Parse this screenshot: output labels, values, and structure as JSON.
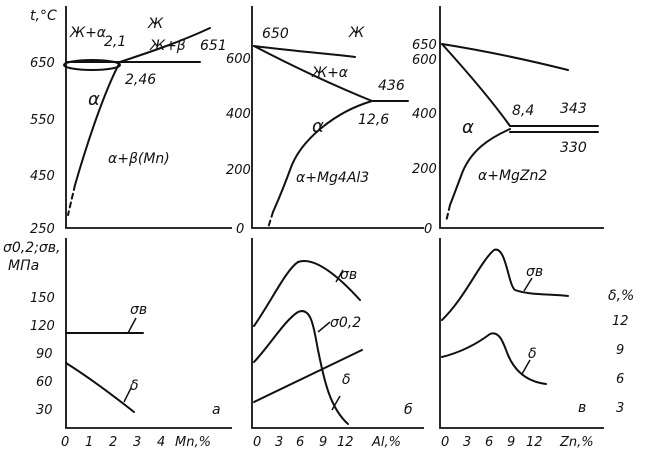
{
  "top_y_label": "t,°C",
  "bottom_y_label_1": "σ0,2;σв,",
  "bottom_y_label_2": "МПа",
  "right_y_label": "δ,%",
  "panel_a": {
    "top_y_ticks": [
      "650",
      "550",
      "450",
      "250"
    ],
    "phases": [
      "Ж+α",
      "Ж",
      "Ж+β",
      "α",
      "α+β(Mn)"
    ],
    "points": [
      "2,1",
      "651",
      "2,46"
    ],
    "bottom_y_ticks": [
      "150",
      "120",
      "90",
      "60",
      "30"
    ],
    "curve_labels": [
      "σв",
      "δ"
    ],
    "panel_letter": "а",
    "x_ticks": [
      "0",
      "1",
      "2",
      "3",
      "4"
    ],
    "x_label": "Mn,%"
  },
  "panel_b": {
    "top_y_ticks": [
      "600",
      "400",
      "200",
      "0"
    ],
    "phases": [
      "Ж",
      "Ж+α",
      "α",
      "α+Mg4Al3"
    ],
    "points": [
      "650",
      "436",
      "12,6"
    ],
    "curve_labels": [
      "σв",
      "σ0,2",
      "δ"
    ],
    "panel_letter": "б",
    "x_ticks": [
      "0",
      "3",
      "6",
      "9",
      "12"
    ],
    "x_label": "Al,%"
  },
  "panel_c": {
    "top_y_ticks": [
      "650",
      "600",
      "400",
      "200",
      "0"
    ],
    "phases": [
      "α",
      "α+MgZn2"
    ],
    "points": [
      "8,4",
      "343",
      "330"
    ],
    "curve_labels": [
      "σв",
      "δ"
    ],
    "right_y_ticks": [
      "12",
      "9",
      "6",
      "3"
    ],
    "panel_letter": "в",
    "x_ticks": [
      "0",
      "3",
      "6",
      "9",
      "12"
    ],
    "x_label": "Zn,%"
  }
}
